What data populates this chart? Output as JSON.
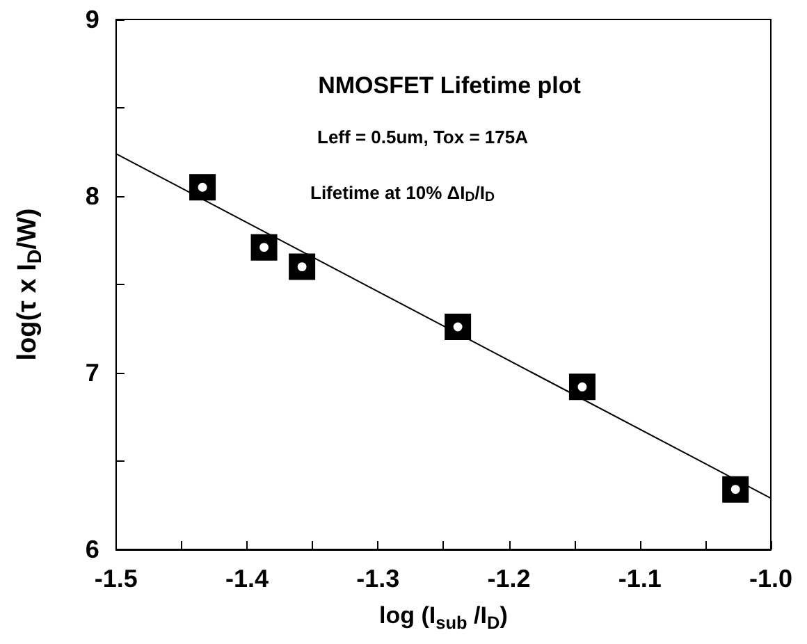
{
  "chart_data": {
    "type": "scatter",
    "title": "NMOSFET Lifetime plot",
    "xlabel": "log (I$_{sub}$ /I$_{D}$)",
    "ylabel": "log(τ x I$_{D}$/W)",
    "annotations": [
      "Leff = 0.5um, Tox = 175A",
      "Lifetime at 10% ΔI$_{D}$/I$_{D}$"
    ],
    "series": [
      {
        "color": "#000000",
        "x": [
          -1.434,
          -1.387,
          -1.358,
          -1.239,
          -1.144,
          -1.027
        ],
        "values": [
          8.05,
          7.71,
          7.6,
          7.26,
          6.92,
          6.34
        ]
      },
      {
        "type": "line",
        "color": "#000000",
        "marker": "none",
        "x": [
          -1.5,
          -1.0
        ],
        "values": [
          8.24,
          6.29
        ]
      }
    ],
    "marker": "square",
    "line_style": "solid",
    "grid": false,
    "xlim": [
      -1.5,
      -1.0
    ],
    "ylim": [
      6,
      9
    ],
    "xticks": [
      {
        "value": -1.5,
        "label": "-1.5"
      },
      {
        "value": -1.45,
        "label": null
      },
      {
        "value": -1.4,
        "label": "-1.4"
      },
      {
        "value": -1.35,
        "label": null
      },
      {
        "value": -1.3,
        "label": "-1.3"
      },
      {
        "value": -1.25,
        "label": null
      },
      {
        "value": -1.2,
        "label": "-1.2"
      },
      {
        "value": -1.15,
        "label": null
      },
      {
        "value": -1.1,
        "label": "-1.1"
      },
      {
        "value": -1.05,
        "label": null
      },
      {
        "value": -1.0,
        "label": "-1.0"
      }
    ],
    "yticks": [
      6,
      {
        "value": 6.5,
        "label": null
      },
      7,
      {
        "value": 7.5,
        "label": null
      },
      8,
      {
        "value": 8.5,
        "label": null
      },
      9
    ]
  }
}
